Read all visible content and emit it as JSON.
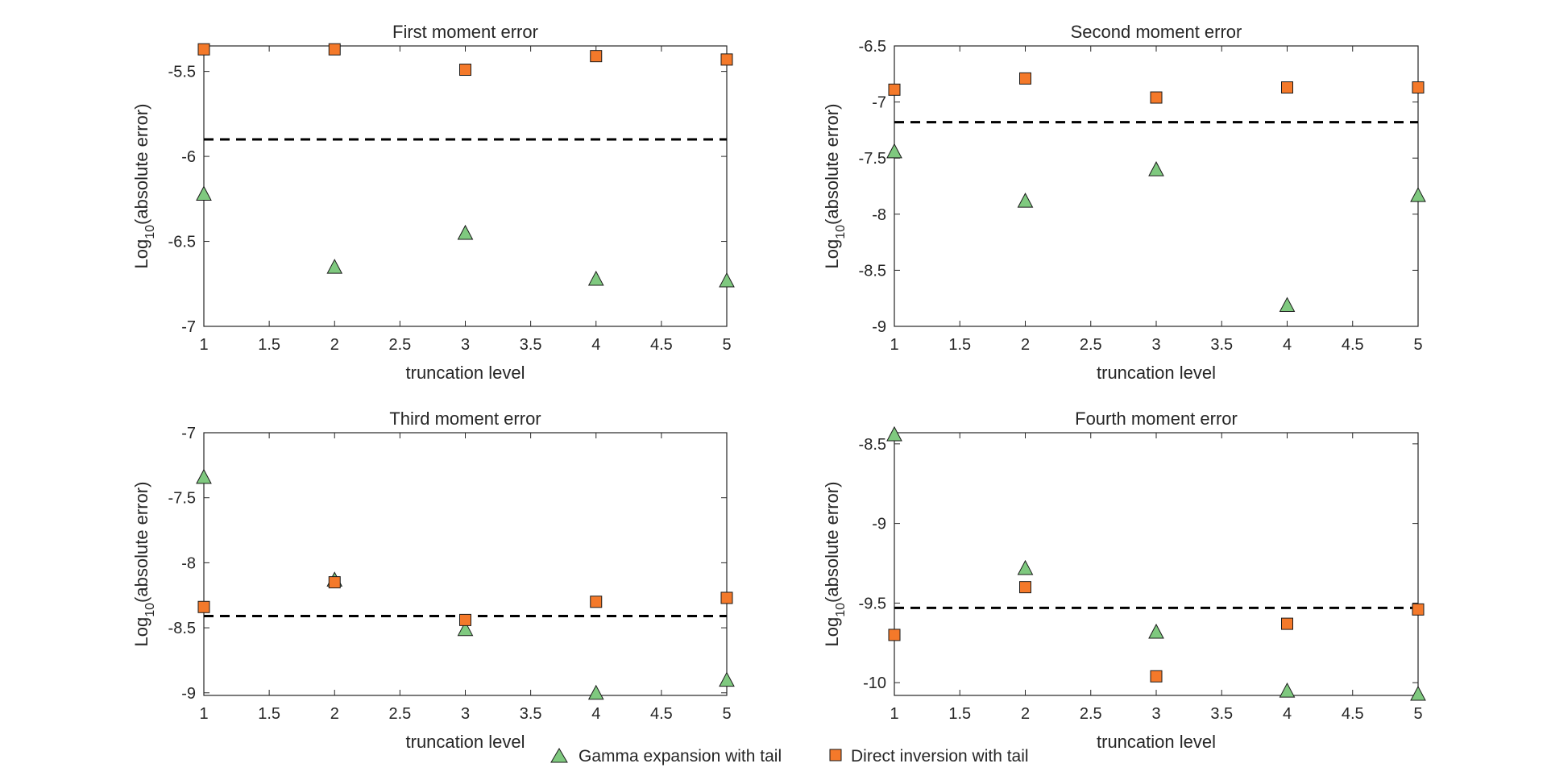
{
  "colors": {
    "gamma": "#7fc97f",
    "direct": "#f4792a",
    "marker_edge": "#1a1a1a",
    "reference_line": "#000000",
    "axis": "#262626"
  },
  "legend": {
    "items": [
      {
        "label": "Gamma expansion with tail",
        "marker": "triangle",
        "color": "#7fc97f"
      },
      {
        "label": "Direct inversion with tail",
        "marker": "square",
        "color": "#f4792a"
      }
    ]
  },
  "chart_data": [
    {
      "type": "scatter",
      "title": "First moment error",
      "xlabel": "truncation level",
      "ylabel_prefix": "Log",
      "ylabel_sub": "10",
      "ylabel_suffix": "(absolute error)",
      "xlim": [
        1,
        5
      ],
      "ylim": [
        -7,
        -5.35
      ],
      "xticks": [
        1,
        1.5,
        2,
        2.5,
        3,
        3.5,
        4,
        4.5,
        5
      ],
      "xtick_labels": [
        "1",
        "1.5",
        "2",
        "2.5",
        "3",
        "3.5",
        "4",
        "4.5",
        "5"
      ],
      "yticks": [
        -7,
        -6.5,
        -6,
        -5.5
      ],
      "ytick_labels": [
        "-7",
        "-6.5",
        "-6",
        "-5.5"
      ],
      "reference_line": -5.9,
      "series": [
        {
          "name": "Gamma expansion with tail",
          "marker": "triangle",
          "x": [
            1,
            2,
            3,
            4,
            5
          ],
          "y": [
            -6.22,
            -6.65,
            -6.45,
            -6.72,
            -6.73
          ]
        },
        {
          "name": "Direct inversion with tail",
          "marker": "square",
          "x": [
            1,
            2,
            3,
            4,
            5
          ],
          "y": [
            -5.37,
            -5.37,
            -5.49,
            -5.41,
            -5.43
          ]
        }
      ]
    },
    {
      "type": "scatter",
      "title": "Second moment error",
      "xlabel": "truncation level",
      "ylabel_prefix": "Log",
      "ylabel_sub": "10",
      "ylabel_suffix": "(absolute error)",
      "xlim": [
        1,
        5
      ],
      "ylim": [
        -9,
        -6.5
      ],
      "xticks": [
        1,
        1.5,
        2,
        2.5,
        3,
        3.5,
        4,
        4.5,
        5
      ],
      "xtick_labels": [
        "1",
        "1.5",
        "2",
        "2.5",
        "3",
        "3.5",
        "4",
        "4.5",
        "5"
      ],
      "yticks": [
        -9,
        -8.5,
        -8,
        -7.5,
        -7,
        -6.5
      ],
      "ytick_labels": [
        "-9",
        "-8.5",
        "-8",
        "-7.5",
        "-7",
        "-6.5"
      ],
      "reference_line": -7.18,
      "series": [
        {
          "name": "Gamma expansion with tail",
          "marker": "triangle",
          "x": [
            1,
            2,
            3,
            4,
            5
          ],
          "y": [
            -7.44,
            -7.88,
            -7.6,
            -8.81,
            -7.83
          ]
        },
        {
          "name": "Direct inversion with tail",
          "marker": "square",
          "x": [
            1,
            2,
            3,
            4,
            5
          ],
          "y": [
            -6.89,
            -6.79,
            -6.96,
            -6.87,
            -6.87
          ]
        }
      ]
    },
    {
      "type": "scatter",
      "title": "Third moment error",
      "xlabel": "truncation level",
      "ylabel_prefix": "Log",
      "ylabel_sub": "10",
      "ylabel_suffix": "(absolute error)",
      "xlim": [
        1,
        5
      ],
      "ylim": [
        -9.02,
        -7
      ],
      "xticks": [
        1,
        1.5,
        2,
        2.5,
        3,
        3.5,
        4,
        4.5,
        5
      ],
      "xtick_labels": [
        "1",
        "1.5",
        "2",
        "2.5",
        "3",
        "3.5",
        "4",
        "4.5",
        "5"
      ],
      "yticks": [
        -9,
        -8.5,
        -8,
        -7.5,
        -7
      ],
      "ytick_labels": [
        "-9",
        "-8.5",
        "-8",
        "-7.5",
        "-7"
      ],
      "reference_line": -8.41,
      "series": [
        {
          "name": "Gamma expansion with tail",
          "marker": "triangle",
          "x": [
            1,
            2,
            3,
            4,
            5
          ],
          "y": [
            -7.34,
            -8.13,
            -8.51,
            -9.0,
            -8.9
          ]
        },
        {
          "name": "Direct inversion with tail",
          "marker": "square",
          "x": [
            1,
            2,
            3,
            4,
            5
          ],
          "y": [
            -8.34,
            -8.15,
            -8.44,
            -8.3,
            -8.27
          ]
        }
      ]
    },
    {
      "type": "scatter",
      "title": "Fourth moment error",
      "xlabel": "truncation level",
      "ylabel_prefix": "Log",
      "ylabel_sub": "10",
      "ylabel_suffix": "(absolute error)",
      "xlim": [
        1,
        5
      ],
      "ylim": [
        -10.08,
        -8.43
      ],
      "xticks": [
        1,
        1.5,
        2,
        2.5,
        3,
        3.5,
        4,
        4.5,
        5
      ],
      "xtick_labels": [
        "1",
        "1.5",
        "2",
        "2.5",
        "3",
        "3.5",
        "4",
        "4.5",
        "5"
      ],
      "yticks": [
        -10,
        -9.5,
        -9,
        -8.5
      ],
      "ytick_labels": [
        "-10",
        "-9.5",
        "-9",
        "-8.5"
      ],
      "reference_line": -9.53,
      "series": [
        {
          "name": "Gamma expansion with tail",
          "marker": "triangle",
          "x": [
            1,
            2,
            3,
            4,
            5
          ],
          "y": [
            -8.44,
            -9.28,
            -9.68,
            -10.05,
            -10.07
          ]
        },
        {
          "name": "Direct inversion with tail",
          "marker": "square",
          "x": [
            1,
            2,
            3,
            4,
            5
          ],
          "y": [
            -9.7,
            -9.4,
            -9.96,
            -9.63,
            -9.54
          ]
        }
      ]
    }
  ]
}
